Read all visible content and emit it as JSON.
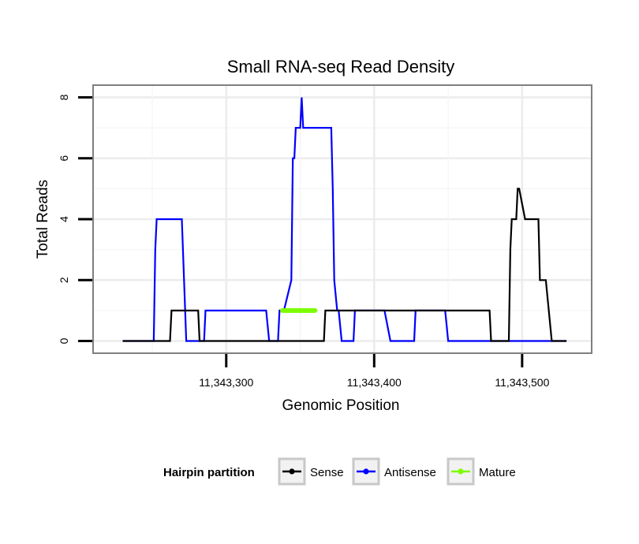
{
  "chart_data": {
    "type": "line",
    "title": "Small RNA-seq Read Density",
    "xlabel": "Genomic Position",
    "ylabel": "Total Reads",
    "xlim": [
      11343210,
      11343547
    ],
    "ylim": [
      -0.4,
      8.4
    ],
    "x_ticks": [
      11343300,
      11343400,
      11343500
    ],
    "x_tick_labels": [
      "11,343,300",
      "11,343,400",
      "11,343,500"
    ],
    "y_ticks": [
      0,
      2,
      4,
      6,
      8
    ],
    "y_tick_labels": [
      "0",
      "2",
      "4",
      "6",
      "8"
    ],
    "grid": true,
    "legend": {
      "title": "Hairpin partition",
      "position": "bottom",
      "entries": [
        "Sense",
        "Antisense",
        "Mature"
      ]
    },
    "series": [
      {
        "name": "Antisense",
        "color": "#0000ff",
        "x": [
          11343230,
          11343251,
          11343252,
          11343253,
          11343270,
          11343273,
          11343285,
          11343286,
          11343327,
          11343329,
          11343335,
          11343336,
          11343339,
          11343344,
          11343345,
          11343346,
          11343347,
          11343350,
          11343351,
          11343352,
          11343353,
          11343355,
          11343356,
          11343371,
          11343372,
          11343373,
          11343375,
          11343376,
          11343378,
          11343381,
          11343386,
          11343387,
          11343407,
          11343411,
          11343427,
          11343428,
          11343448,
          11343450,
          11343530
        ],
        "y": [
          0,
          0,
          3,
          4,
          4,
          0,
          0,
          1,
          1,
          0,
          0,
          1,
          1,
          2,
          6,
          6,
          7,
          7,
          8,
          7,
          7,
          7,
          7,
          7,
          5,
          2,
          1,
          1,
          0,
          0,
          0,
          1,
          1,
          0,
          0,
          1,
          1,
          0,
          0
        ]
      },
      {
        "name": "Sense",
        "color": "#000000",
        "x": [
          11343230,
          11343262,
          11343263,
          11343281,
          11343282,
          11343366,
          11343367,
          11343478,
          11343479,
          11343491,
          11343492,
          11343493,
          11343496,
          11343497,
          11343498,
          11343502,
          11343511,
          11343512,
          11343516,
          11343520,
          11343530
        ],
        "y": [
          0,
          0,
          1,
          1,
          0,
          0,
          1,
          1,
          0,
          0,
          3,
          4,
          4,
          5,
          5,
          4,
          4,
          2,
          2,
          0,
          0
        ]
      },
      {
        "name": "Mature",
        "color": "#7cfc00",
        "x": [
          11343338,
          11343360
        ],
        "y": [
          1,
          1
        ]
      }
    ]
  }
}
